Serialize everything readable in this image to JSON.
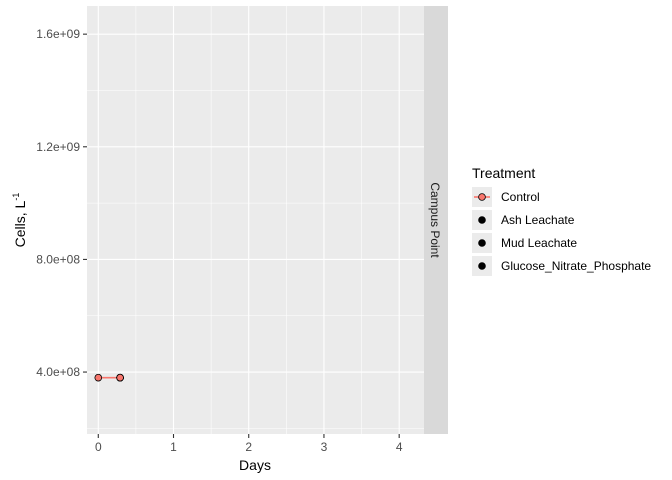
{
  "chart_data": {
    "type": "line",
    "xlabel": "Days",
    "ylabel": "Cells, L",
    "ylabel_superscript": "-1",
    "xlim": [
      -0.15,
      4.33
    ],
    "ylim": [
      180000000.0,
      1700000000.0
    ],
    "x_ticks": [
      0,
      1,
      2,
      3,
      4
    ],
    "x_tick_labels": [
      "0",
      "1",
      "2",
      "3",
      "4"
    ],
    "y_ticks": [
      400000000.0,
      800000000.0,
      1200000000.0,
      1600000000.0
    ],
    "y_tick_labels": [
      "4.0e+08",
      "8.0e+08",
      "1.2e+09",
      "1.6e+09"
    ],
    "grid": true,
    "facet_label": "Campus Point",
    "legend": {
      "title": "Treatment",
      "placement": "right",
      "entries": [
        "Control",
        "Ash Leachate",
        "Mud Leachate",
        "Glucose_Nitrate_Phosphate"
      ]
    },
    "series": [
      {
        "name": "Control",
        "color": "#F8766D",
        "lines": [
          {
            "x": [
              0,
              0.29,
              0.29,
              0.29,
              0.29
            ],
            "y": [
              380000000.0,
              380000000.0,
              380000000.0,
              380000000.0,
              380000000.0
            ]
          }
        ]
      }
    ]
  }
}
